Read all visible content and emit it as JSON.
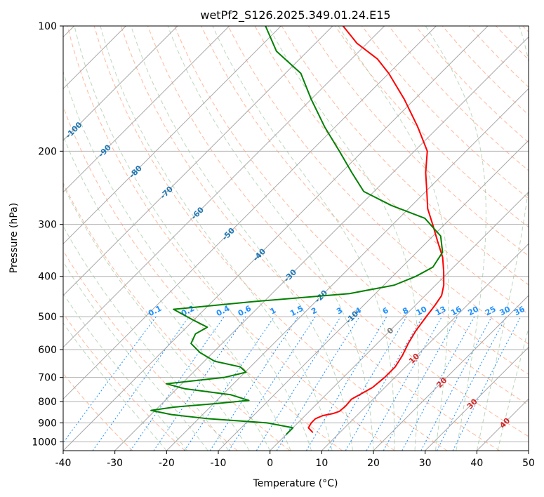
{
  "chart_data": {
    "type": "line",
    "title": "wetPf2_S126.2025.349.01.24.E15",
    "xlabel": "Temperature (°C)",
    "ylabel": "Pressure (hPa)",
    "xlim": [
      -40,
      50
    ],
    "ylim": [
      1050,
      100
    ],
    "y_scale": "log",
    "skew": "skew-T log-P",
    "grid": true,
    "x_ticks": [
      -40,
      -30,
      -20,
      -10,
      0,
      10,
      20,
      30,
      40,
      50
    ],
    "y_ticks": [
      100,
      200,
      300,
      400,
      500,
      600,
      700,
      800,
      900,
      1000
    ],
    "series": [
      {
        "color": "#ff0000",
        "points": [
          [
            4.8,
            950
          ],
          [
            3.0,
            925
          ],
          [
            2.6,
            900
          ],
          [
            2.6,
            880
          ],
          [
            3.4,
            865
          ],
          [
            5.0,
            855
          ],
          [
            5.8,
            845
          ],
          [
            6.0,
            820
          ],
          [
            5.8,
            790
          ],
          [
            6.5,
            770
          ],
          [
            7.6,
            740
          ],
          [
            8.0,
            700
          ],
          [
            8.0,
            660
          ],
          [
            7.2,
            620
          ],
          [
            6.0,
            580
          ],
          [
            5.0,
            540
          ],
          [
            4.3,
            500
          ],
          [
            3.8,
            470
          ],
          [
            3.2,
            445
          ],
          [
            1.6,
            420
          ],
          [
            -1.0,
            390
          ],
          [
            -4.0,
            360
          ],
          [
            -8.0,
            330
          ],
          [
            -12.3,
            300
          ],
          [
            -16.3,
            275
          ],
          [
            -19.8,
            250
          ],
          [
            -23.7,
            225
          ],
          [
            -27.5,
            200
          ],
          [
            -34.0,
            175
          ],
          [
            -42.0,
            150
          ],
          [
            -50.0,
            130
          ],
          [
            -55.0,
            120
          ],
          [
            -62.0,
            110
          ],
          [
            -68.0,
            100
          ]
        ]
      },
      {
        "color": "#008000",
        "points": [
          [
            0.0,
            960
          ],
          [
            0.0,
            925
          ],
          [
            -6.0,
            900
          ],
          [
            -18.0,
            880
          ],
          [
            -26.0,
            860
          ],
          [
            -30.8,
            840
          ],
          [
            -27.0,
            825
          ],
          [
            -20.0,
            810
          ],
          [
            -13.8,
            795
          ],
          [
            -18.5,
            770
          ],
          [
            -28.5,
            745
          ],
          [
            -33.0,
            725
          ],
          [
            -23.0,
            700
          ],
          [
            -19.8,
            680
          ],
          [
            -22.0,
            660
          ],
          [
            -28.0,
            640
          ],
          [
            -32.5,
            610
          ],
          [
            -36.0,
            580
          ],
          [
            -37.0,
            550
          ],
          [
            -36.0,
            530
          ],
          [
            -40.0,
            510
          ],
          [
            -46.0,
            480
          ],
          [
            -32.0,
            460
          ],
          [
            -15.0,
            440
          ],
          [
            -8.0,
            420
          ],
          [
            -5.5,
            400
          ],
          [
            -4.0,
            380
          ],
          [
            -5.0,
            350
          ],
          [
            -8.5,
            320
          ],
          [
            -15.0,
            290
          ],
          [
            -24.0,
            270
          ],
          [
            -32.0,
            250
          ],
          [
            -38.0,
            225
          ],
          [
            -44.5,
            200
          ],
          [
            -52.0,
            175
          ],
          [
            -60.0,
            150
          ],
          [
            -67.0,
            130
          ],
          [
            -76.0,
            115
          ],
          [
            -83.0,
            100
          ]
        ]
      }
    ],
    "dry_adiabat_labels": [
      "-100",
      "-90",
      "-80",
      "-70",
      "-60",
      "-50",
      "-40",
      "-30",
      "-20",
      "-10",
      "0",
      "10",
      "20",
      "30",
      "40"
    ],
    "mixing_ratio_labels": [
      "0.1",
      "0.2",
      "0.4",
      "0.6",
      "1",
      "1.5",
      "2",
      "3",
      "4",
      "6",
      "8",
      "10",
      "13",
      "16",
      "20",
      "25",
      "30",
      "36"
    ],
    "colors": {
      "temperature": "#ff0000",
      "dewpoint": "#008000",
      "isotherms": "#808080",
      "dry_adiabats": "#ffa07a",
      "moist_adiabats": "#8fbc8f",
      "mixing_ratio": "#1e90ff",
      "adiabat_labels_cold": "#1f77b4",
      "adiabat_labels_warm": "#d62728"
    }
  }
}
